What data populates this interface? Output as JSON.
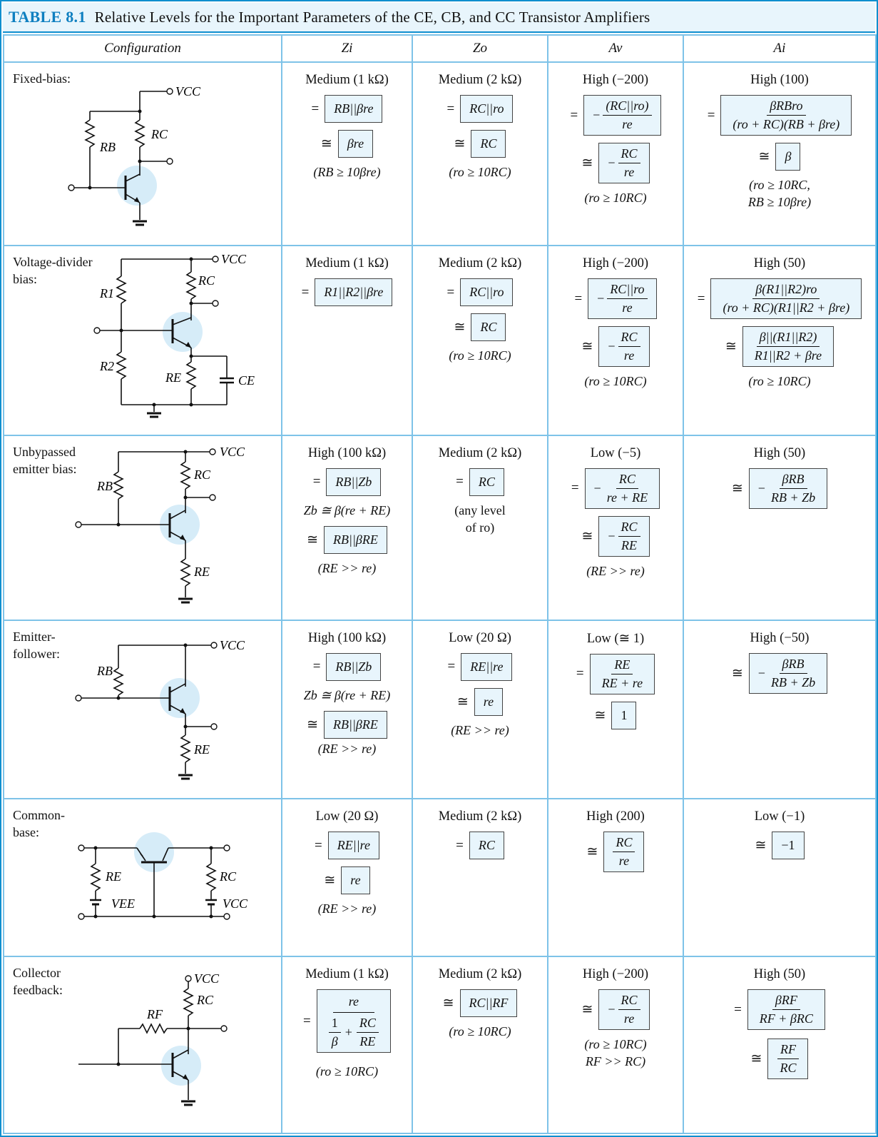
{
  "table": {
    "number": "TABLE 8.1",
    "title": "Relative Levels for the Important Parameters of the CE, CB, and CC Transistor Amplifiers",
    "headers": [
      "Configuration",
      "Zi",
      "Zo",
      "Av",
      "Ai"
    ]
  },
  "labels": {
    "RB": "RB",
    "RC": "RC",
    "RE": "RE",
    "R1": "R1",
    "R2": "R2",
    "RF": "RF",
    "VCC": "VCC",
    "VEE": "VEE",
    "CE": "CE"
  },
  "rows": [
    {
      "config": "Fixed-bias:",
      "zi": {
        "level": "Medium (1 kΩ)",
        "eq": "RB||βre",
        "approx": "βre",
        "cond": "(RB ≥ 10βre)"
      },
      "zo": {
        "level": "Medium (2 kΩ)",
        "eq": "RC||ro",
        "approx": "RC",
        "cond": "(ro ≥ 10RC)"
      },
      "av": {
        "level": "High (−200)",
        "eq_num": "(RC||ro)",
        "eq_den": "re",
        "approx_num": "RC",
        "approx_den": "re",
        "cond": "(ro ≥ 10RC)"
      },
      "ai": {
        "level": "High (100)",
        "eq_num": "βRBro",
        "eq_den": "(ro + RC)(RB + βre)",
        "approx": "β",
        "cond1": "(ro ≥ 10RC,",
        "cond2": "RB ≥ 10βre)"
      }
    },
    {
      "config": "Voltage-divider bias:",
      "zi": {
        "level": "Medium (1 kΩ)",
        "eq": "R1||R2||βre"
      },
      "zo": {
        "level": "Medium (2 kΩ)",
        "eq": "RC||ro",
        "approx": "RC",
        "cond": "(ro ≥ 10RC)"
      },
      "av": {
        "level": "High (−200)",
        "eq_num": "RC||ro",
        "eq_den": "re",
        "approx_num": "RC",
        "approx_den": "re",
        "cond": "(ro ≥ 10RC)"
      },
      "ai": {
        "level": "High (50)",
        "eq_num": "β(R1||R2)ro",
        "eq_den": "(ro + RC)(R1||R2 + βre)",
        "approx_num": "β||(R1||R2)",
        "approx_den": "R1||R2 + βre",
        "cond": "(ro ≥ 10RC)"
      }
    },
    {
      "config": "Unbypassed emitter bias:",
      "zi": {
        "level": "High (100 kΩ)",
        "eq": "RB||Zb",
        "zb": "Zb ≅ β(re + RE)",
        "approx": "RB||βRE",
        "cond": "(RE >> re)"
      },
      "zo": {
        "level": "Medium (2 kΩ)",
        "eq": "RC",
        "note1": "(any level",
        "note2": "of ro)"
      },
      "av": {
        "level": "Low (−5)",
        "eq_num": "RC",
        "eq_den": "re + RE",
        "approx_num": "RC",
        "approx_den": "RE",
        "cond": "(RE >> re)"
      },
      "ai": {
        "level": "High (50)",
        "eq_num": "βRB",
        "eq_den": "RB + Zb"
      }
    },
    {
      "config": "Emitter-follower:",
      "zi": {
        "level": "High (100 kΩ)",
        "eq": "RB||Zb",
        "zb": "Zb ≅ β(re + RE)",
        "approx": "RB||βRE",
        "cond": "(RE >> re)"
      },
      "zo": {
        "level": "Low (20 Ω)",
        "eq": "RE||re",
        "approx": "re",
        "cond": "(RE >> re)"
      },
      "av": {
        "level": "Low (≅ 1)",
        "eq_num": "RE",
        "eq_den": "RE + re",
        "approx": "1"
      },
      "ai": {
        "level": "High (−50)",
        "eq_num": "βRB",
        "eq_den": "RB + Zb"
      }
    },
    {
      "config": "Common-base:",
      "zi": {
        "level": "Low (20 Ω)",
        "eq": "RE||re",
        "approx": "re",
        "cond": "(RE >> re)"
      },
      "zo": {
        "level": "Medium (2 kΩ)",
        "eq": "RC"
      },
      "av": {
        "level": "High (200)",
        "approx_num": "RC",
        "approx_den": "re"
      },
      "ai": {
        "level": "Low (−1)",
        "approx": "−1"
      }
    },
    {
      "config": "Collector feedback:",
      "zi": {
        "level": "Medium (1 kΩ)",
        "eq_num": "re",
        "inner_n1": "1",
        "inner_d1": "β",
        "inner_n2": "RC",
        "inner_d2": "RE",
        "cond": "(ro ≥ 10RC)"
      },
      "zo": {
        "level": "Medium (2 kΩ)",
        "approx": "RC||RF",
        "cond": "(ro ≥ 10RC)"
      },
      "av": {
        "level": "High (−200)",
        "approx_num": "RC",
        "approx_den": "re",
        "cond1": "(ro ≥ 10RC)",
        "cond2": "RF >> RC)"
      },
      "ai": {
        "level": "High (50)",
        "eq_num": "βRF",
        "eq_den": "RF + βRC",
        "approx_num": "RF",
        "approx_den": "RC"
      }
    }
  ],
  "symbols": {
    "eq": "=",
    "approx": "≅"
  }
}
